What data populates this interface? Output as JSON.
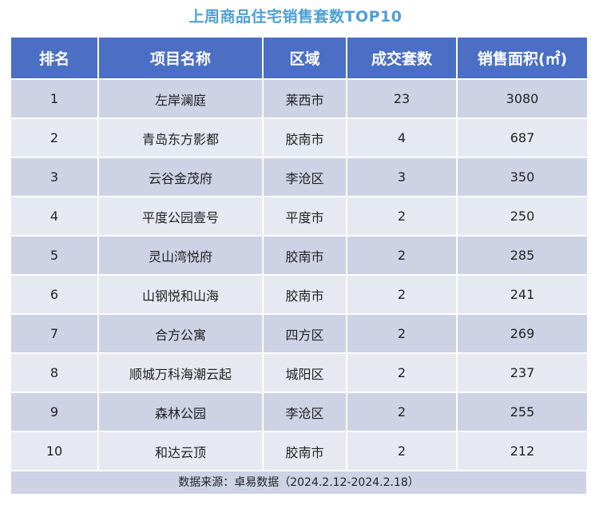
{
  "title": "上周商品住宅销售套数TOP10",
  "table": {
    "headers": [
      "排名",
      "项目名称",
      "区域",
      "成交套数",
      "销售面积(㎡)"
    ],
    "rows": [
      {
        "rank": "1",
        "name": "左岸澜庭",
        "district": "莱西市",
        "units": "23",
        "area": "3080"
      },
      {
        "rank": "2",
        "name": "青岛东方影都",
        "district": "胶南市",
        "units": "4",
        "area": "687"
      },
      {
        "rank": "3",
        "name": "云谷金茂府",
        "district": "李沧区",
        "units": "3",
        "area": "350"
      },
      {
        "rank": "4",
        "name": "平度公园壹号",
        "district": "平度市",
        "units": "2",
        "area": "250"
      },
      {
        "rank": "5",
        "name": "灵山湾悦府",
        "district": "胶南市",
        "units": "2",
        "area": "285"
      },
      {
        "rank": "6",
        "name": "山钢悦和山海",
        "district": "胶南市",
        "units": "2",
        "area": "241"
      },
      {
        "rank": "7",
        "name": "合方公寓",
        "district": "四方区",
        "units": "2",
        "area": "269"
      },
      {
        "rank": "8",
        "name": "顺城万科海潮云起",
        "district": "城阳区",
        "units": "2",
        "area": "237"
      },
      {
        "rank": "9",
        "name": "森林公园",
        "district": "李沧区",
        "units": "2",
        "area": "255"
      },
      {
        "rank": "10",
        "name": "和达云顶",
        "district": "胶南市",
        "units": "2",
        "area": "212"
      }
    ]
  },
  "source": "数据来源：卓易数据（2024.2.12-2024.2.18）",
  "colors": {
    "title": "#4f9fd6",
    "header_bg": "#4a6fc4",
    "row_dark": "#cdd2e5",
    "row_light": "#e6e9f2"
  }
}
